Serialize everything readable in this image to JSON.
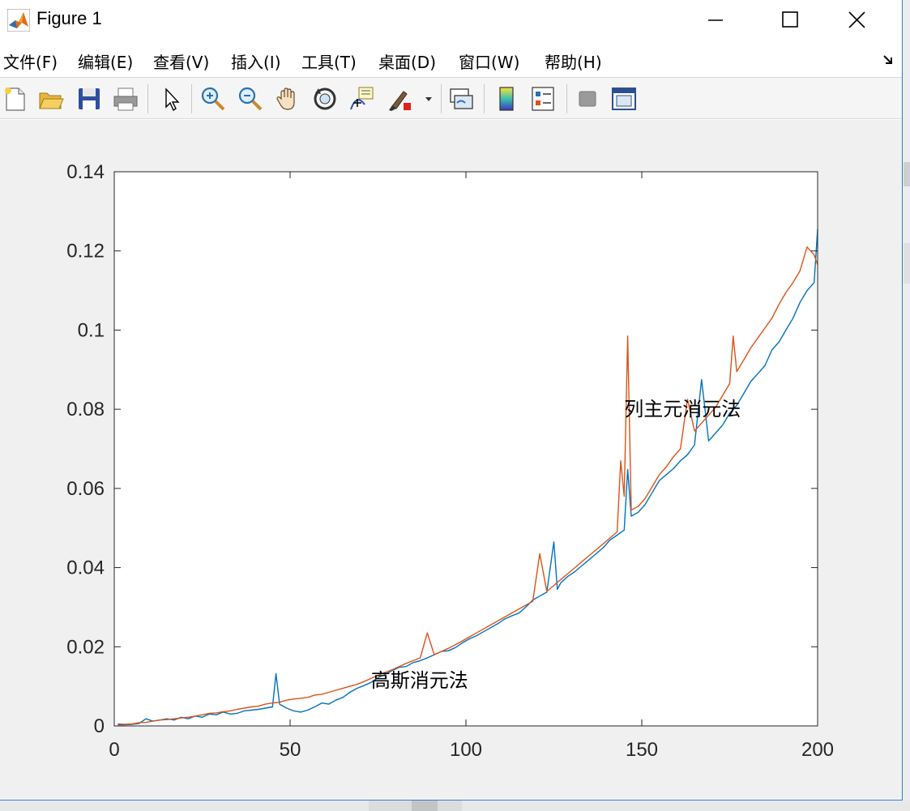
{
  "window": {
    "title": "Figure 1"
  },
  "menu": {
    "items": [
      {
        "label": "文件(F)"
      },
      {
        "label": "编辑(E)"
      },
      {
        "label": "查看(V)"
      },
      {
        "label": "插入(I)"
      },
      {
        "label": "工具(T)"
      },
      {
        "label": "桌面(D)"
      },
      {
        "label": "窗口(W)"
      },
      {
        "label": "帮助(H)"
      }
    ]
  },
  "toolbar": {
    "icons": [
      "new-figure-icon",
      "open-file-icon",
      "save-icon",
      "print-icon",
      "edit-plot-arrow-icon",
      "zoom-in-icon",
      "zoom-out-icon",
      "pan-hand-icon",
      "rotate-3d-icon",
      "data-cursor-icon",
      "brush-icon",
      "brush-dropdown-icon",
      "link-plot-icon",
      "colorbar-icon",
      "legend-icon",
      "hide-plot-tools-icon",
      "show-plot-tools-icon"
    ]
  },
  "colors": {
    "series_blue": "#0072bd",
    "series_orange": "#d95319"
  },
  "chart_data": {
    "type": "line",
    "title": "",
    "xlabel": "",
    "ylabel": "",
    "xlim": [
      0,
      200
    ],
    "ylim": [
      0,
      0.14
    ],
    "xticks": [
      "0",
      "50",
      "100",
      "150",
      "200"
    ],
    "yticks": [
      "0",
      "0.02",
      "0.04",
      "0.06",
      "0.08",
      "0.1",
      "0.12",
      "0.14"
    ],
    "grid": false,
    "annotations": [
      {
        "text": "高斯消元法",
        "x": 73,
        "y": 0.0115
      },
      {
        "text": "列主元消元法",
        "x": 145,
        "y": 0.08
      }
    ],
    "series": [
      {
        "x": [
          1,
          3,
          5,
          7,
          9,
          11,
          13,
          15,
          17,
          19,
          21,
          23,
          25,
          27,
          29,
          31,
          33,
          35,
          37,
          39,
          41,
          43,
          45,
          46,
          47,
          49,
          51,
          53,
          55,
          57,
          59,
          61,
          63,
          65,
          67,
          69,
          71,
          73,
          75,
          77,
          79,
          81,
          83,
          85,
          87,
          89,
          91,
          93,
          95,
          97,
          99,
          101,
          103,
          105,
          107,
          109,
          111,
          113,
          115,
          117,
          119,
          121,
          123,
          125,
          126,
          127,
          129,
          131,
          133,
          135,
          137,
          139,
          141,
          143,
          145,
          146,
          147,
          149,
          151,
          153,
          155,
          157,
          159,
          161,
          163,
          165,
          167,
          169,
          171,
          173,
          175,
          177,
          179,
          181,
          183,
          185,
          187,
          189,
          191,
          193,
          195,
          197,
          199,
          200
        ],
        "values": [
          0.0003,
          0.0003,
          0.0004,
          0.0006,
          0.0018,
          0.0012,
          0.0015,
          0.0018,
          0.0015,
          0.0022,
          0.0018,
          0.0025,
          0.0022,
          0.003,
          0.0028,
          0.0035,
          0.003,
          0.0032,
          0.0038,
          0.004,
          0.0042,
          0.0045,
          0.0048,
          0.0132,
          0.0055,
          0.0045,
          0.0038,
          0.0035,
          0.004,
          0.0048,
          0.0058,
          0.0055,
          0.0065,
          0.0072,
          0.0085,
          0.0095,
          0.0102,
          0.011,
          0.0122,
          0.013,
          0.014,
          0.0148,
          0.015,
          0.016,
          0.0165,
          0.0172,
          0.018,
          0.0188,
          0.019,
          0.0198,
          0.021,
          0.022,
          0.0228,
          0.0238,
          0.0248,
          0.0258,
          0.027,
          0.0278,
          0.0285,
          0.03,
          0.0318,
          0.0328,
          0.0338,
          0.0465,
          0.0345,
          0.0362,
          0.0378,
          0.039,
          0.0405,
          0.042,
          0.0435,
          0.045,
          0.047,
          0.0482,
          0.0495,
          0.0648,
          0.053,
          0.054,
          0.056,
          0.059,
          0.062,
          0.0635,
          0.065,
          0.067,
          0.0685,
          0.071,
          0.0875,
          0.072,
          0.074,
          0.076,
          0.079,
          0.081,
          0.084,
          0.087,
          0.089,
          0.091,
          0.095,
          0.097,
          0.1,
          0.103,
          0.107,
          0.11,
          0.112,
          0.1255
        ]
      },
      {
        "x": [
          1,
          3,
          5,
          7,
          9,
          11,
          13,
          15,
          17,
          19,
          21,
          23,
          25,
          27,
          29,
          31,
          33,
          35,
          37,
          39,
          41,
          43,
          45,
          47,
          49,
          51,
          53,
          55,
          57,
          59,
          61,
          63,
          65,
          67,
          69,
          71,
          73,
          75,
          77,
          79,
          81,
          83,
          85,
          87,
          89,
          91,
          93,
          95,
          97,
          99,
          101,
          103,
          105,
          107,
          109,
          111,
          113,
          115,
          117,
          119,
          121,
          123,
          125,
          127,
          129,
          131,
          133,
          135,
          137,
          139,
          141,
          143,
          144,
          145,
          146,
          147,
          149,
          151,
          153,
          155,
          157,
          159,
          161,
          163,
          165,
          167,
          169,
          171,
          173,
          175,
          176,
          177,
          179,
          181,
          183,
          185,
          187,
          189,
          191,
          193,
          195,
          197,
          199,
          200
        ],
        "values": [
          0.0005,
          0.0004,
          0.0005,
          0.0008,
          0.0009,
          0.0012,
          0.0015,
          0.0016,
          0.0018,
          0.002,
          0.0022,
          0.0025,
          0.0028,
          0.0032,
          0.0033,
          0.0036,
          0.0038,
          0.0042,
          0.0045,
          0.0048,
          0.005,
          0.0055,
          0.0058,
          0.006,
          0.0065,
          0.0068,
          0.007,
          0.0072,
          0.0078,
          0.008,
          0.0085,
          0.009,
          0.0095,
          0.01,
          0.0105,
          0.0112,
          0.012,
          0.0128,
          0.0135,
          0.0142,
          0.015,
          0.0158,
          0.0165,
          0.0172,
          0.0235,
          0.018,
          0.0188,
          0.0196,
          0.0205,
          0.0215,
          0.0225,
          0.0235,
          0.0245,
          0.0255,
          0.0265,
          0.0275,
          0.0285,
          0.0295,
          0.0305,
          0.0315,
          0.0435,
          0.034,
          0.0355,
          0.037,
          0.0385,
          0.04,
          0.0415,
          0.043,
          0.0445,
          0.046,
          0.0475,
          0.049,
          0.067,
          0.058,
          0.0985,
          0.0545,
          0.0555,
          0.0575,
          0.0605,
          0.0635,
          0.0655,
          0.068,
          0.07,
          0.0825,
          0.0745,
          0.0765,
          0.0785,
          0.0805,
          0.0835,
          0.0865,
          0.0985,
          0.0895,
          0.0925,
          0.0955,
          0.098,
          0.1005,
          0.103,
          0.1065,
          0.1095,
          0.112,
          0.115,
          0.121,
          0.119,
          0.1165
        ]
      }
    ]
  }
}
